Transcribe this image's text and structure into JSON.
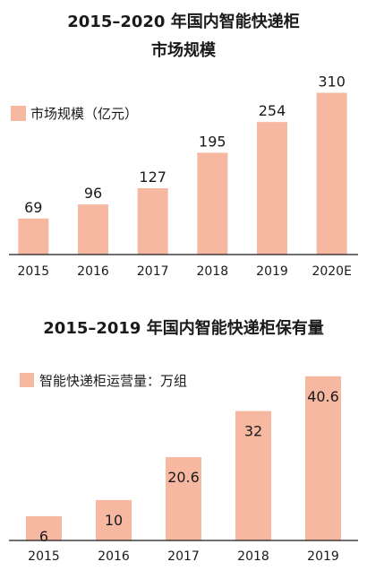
{
  "chart_data": [
    {
      "type": "bar",
      "title": "2015–2020 年国内智能快递柜",
      "subtitle": "市场规模",
      "legend": "市场规模（亿元）",
      "categories": [
        "2015",
        "2016",
        "2017",
        "2018",
        "2019",
        "2020E"
      ],
      "values": [
        69,
        96,
        127,
        195,
        254,
        310
      ],
      "value_labels": [
        "69",
        "96",
        "127",
        "195",
        "254",
        "310"
      ],
      "ylim": [
        0,
        340
      ],
      "legend_position": "top-left",
      "grid": false,
      "bar_color": "#F7B8A1"
    },
    {
      "type": "bar",
      "title": "2015–2019 年国内智能快递柜保有量",
      "legend": "智能快递柜运营量：万组",
      "categories": [
        "2015",
        "2016",
        "2017",
        "2018",
        "2019"
      ],
      "values": [
        6,
        10,
        20.6,
        32,
        40.6
      ],
      "value_labels": [
        "6",
        "10",
        "20.6",
        "32",
        "40.6"
      ],
      "ylim": [
        0,
        41
      ],
      "legend_position": "top-left",
      "grid": false,
      "bar_color": "#F7B8A1"
    }
  ]
}
